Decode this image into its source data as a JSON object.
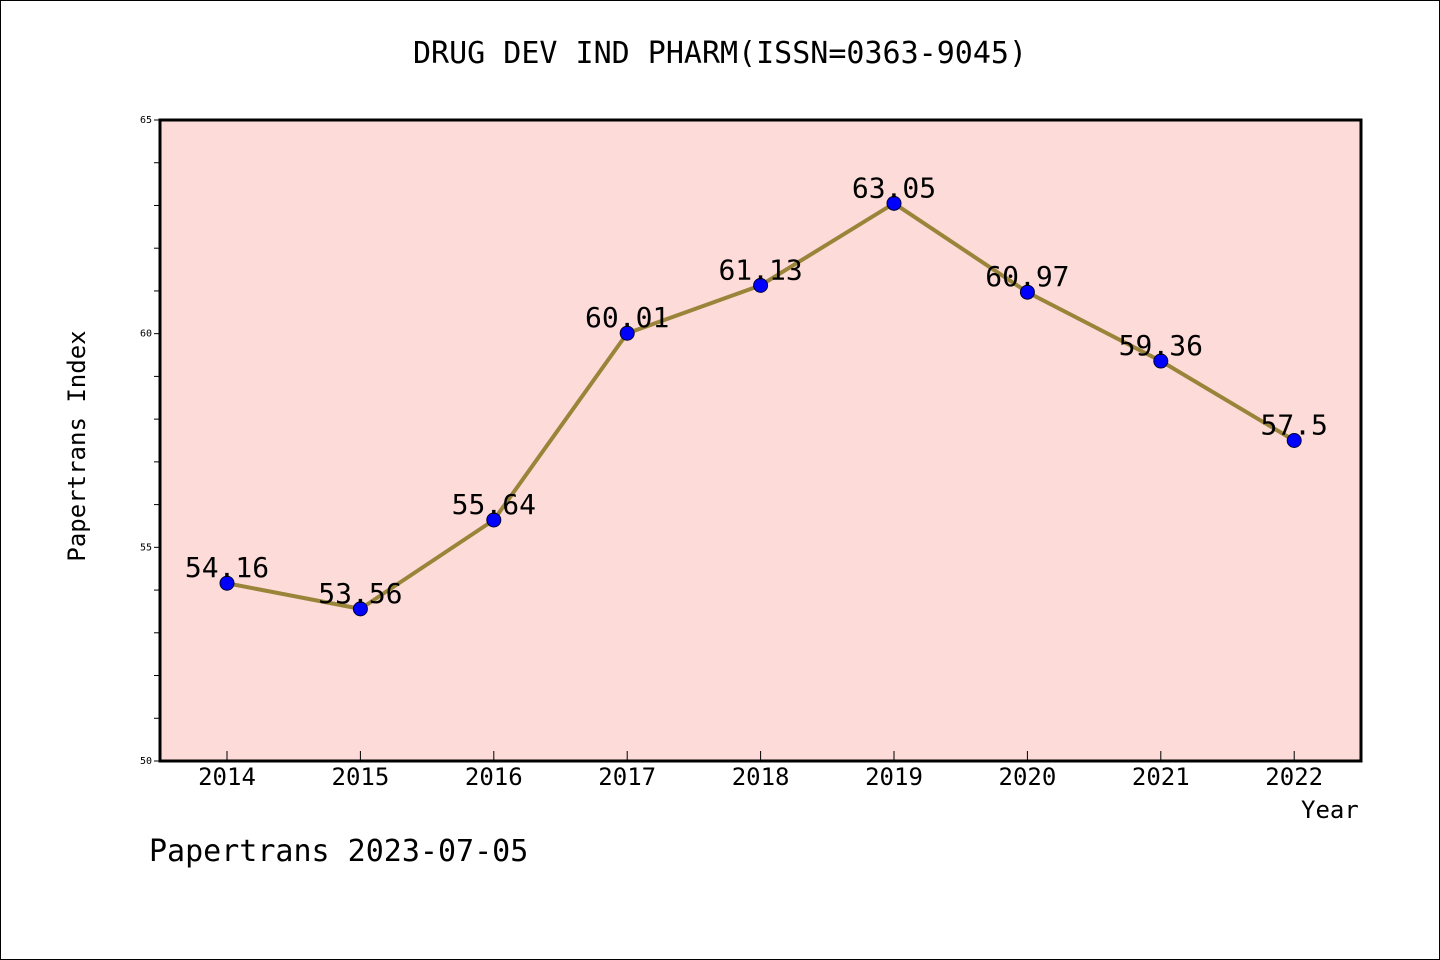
{
  "chart_data": {
    "type": "line",
    "title": "DRUG DEV IND PHARM(ISSN=0363-9045)",
    "xlabel": "Year",
    "ylabel": "Papertrans Index",
    "categories": [
      "2014",
      "2015",
      "2016",
      "2017",
      "2018",
      "2019",
      "2020",
      "2021",
      "2022"
    ],
    "values": [
      54.16,
      53.56,
      55.64,
      60.01,
      61.13,
      63.05,
      60.97,
      59.36,
      57.5
    ],
    "data_labels": [
      "54.16",
      "53.56",
      "55.64",
      "60.01",
      "61.13",
      "63.05",
      "60.97",
      "59.36",
      "57.5"
    ],
    "ylim": [
      50,
      65
    ],
    "y_ticks": [
      "50",
      "55",
      "60",
      "65"
    ],
    "grid": false,
    "legend": "none",
    "colors": {
      "plot_background": "#fddbd8",
      "line": "#9a8439",
      "marker": "#0000ff"
    }
  },
  "footer": {
    "note": "Papertrans 2023-07-05"
  }
}
